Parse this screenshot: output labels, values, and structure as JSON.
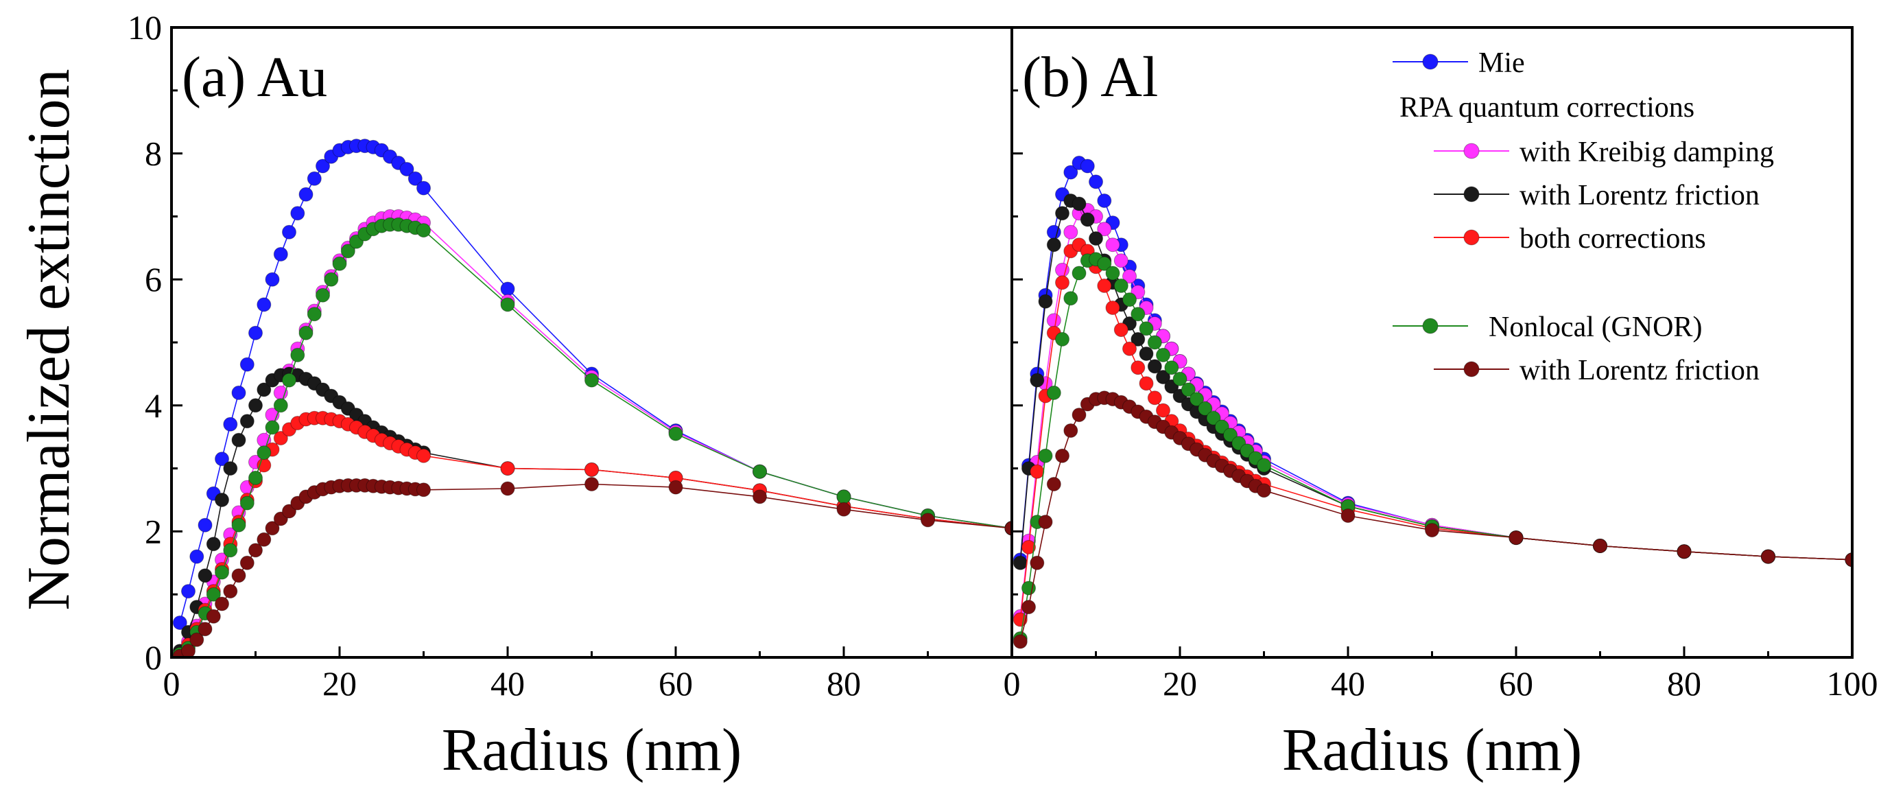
{
  "figure": {
    "ylabel": "Normalized extinction",
    "y_ticks": [
      "0",
      "2",
      "4",
      "6",
      "8",
      "10"
    ],
    "ylim": [
      0,
      10
    ]
  },
  "legend": {
    "items": [
      {
        "key": "mie",
        "label": "Mie",
        "color": "#1a1aff"
      },
      {
        "key": "rpa_header",
        "label": "RPA quantum corrections",
        "header": true
      },
      {
        "key": "kreibig",
        "label": "with Kreibig damping",
        "color": "#ff33ff"
      },
      {
        "key": "lorentz",
        "label": "with Lorentz friction",
        "color": "#1a1a1a"
      },
      {
        "key": "both",
        "label": "both corrections",
        "color": "#ff1a1a"
      },
      {
        "key": "gnor",
        "label": "Nonlocal (GNOR)",
        "color": "#1f8a1f"
      },
      {
        "key": "gnor_lorentz",
        "label": "with Lorentz friction",
        "color": "#7a0f0f"
      }
    ]
  },
  "chart_data": [
    {
      "type": "line",
      "title": "(a) Au",
      "xlabel": "Radius (nm)",
      "ylabel": "Normalized extinction",
      "xlim": [
        0,
        100
      ],
      "ylim": [
        0,
        10
      ],
      "x_ticks": [
        "0",
        "20",
        "40",
        "60",
        "80"
      ],
      "series": [
        {
          "name": "Mie",
          "color": "#1a1aff",
          "x": [
            1,
            2,
            3,
            4,
            5,
            6,
            7,
            8,
            9,
            10,
            11,
            12,
            13,
            14,
            15,
            16,
            17,
            18,
            19,
            20,
            21,
            22,
            23,
            24,
            25,
            26,
            27,
            28,
            29,
            30,
            40,
            50,
            60,
            70,
            80,
            90,
            100
          ],
          "values": [
            0.55,
            1.05,
            1.6,
            2.1,
            2.6,
            3.15,
            3.7,
            4.2,
            4.65,
            5.15,
            5.6,
            6.0,
            6.4,
            6.75,
            7.05,
            7.35,
            7.6,
            7.8,
            7.95,
            8.05,
            8.1,
            8.12,
            8.12,
            8.1,
            8.05,
            7.95,
            7.85,
            7.75,
            7.6,
            7.45,
            5.85,
            4.5,
            3.6,
            2.95,
            2.55,
            2.25,
            2.05
          ]
        },
        {
          "name": "with Kreibig damping",
          "color": "#ff33ff",
          "x": [
            1,
            2,
            3,
            4,
            5,
            6,
            7,
            8,
            9,
            10,
            11,
            12,
            13,
            14,
            15,
            16,
            17,
            18,
            19,
            20,
            21,
            22,
            23,
            24,
            25,
            26,
            27,
            28,
            29,
            30,
            40,
            50,
            60,
            70,
            80,
            90,
            100
          ],
          "values": [
            0.05,
            0.25,
            0.5,
            0.85,
            1.2,
            1.55,
            1.95,
            2.3,
            2.7,
            3.1,
            3.45,
            3.85,
            4.2,
            4.55,
            4.9,
            5.2,
            5.5,
            5.8,
            6.05,
            6.3,
            6.5,
            6.65,
            6.8,
            6.9,
            6.97,
            7.0,
            7.0,
            6.98,
            6.95,
            6.9,
            5.65,
            4.45,
            3.58,
            2.95,
            2.55,
            2.25,
            2.05
          ]
        },
        {
          "name": "with Lorentz friction",
          "color": "#1a1a1a",
          "x": [
            1,
            2,
            3,
            4,
            5,
            6,
            7,
            8,
            9,
            10,
            11,
            12,
            13,
            14,
            15,
            16,
            17,
            18,
            19,
            20,
            21,
            22,
            23,
            24,
            25,
            26,
            27,
            28,
            29,
            30,
            40,
            50,
            60,
            70,
            80,
            90,
            100
          ],
          "values": [
            0.1,
            0.4,
            0.8,
            1.3,
            1.8,
            2.5,
            3.0,
            3.45,
            3.75,
            4.0,
            4.25,
            4.4,
            4.48,
            4.5,
            4.48,
            4.42,
            4.35,
            4.25,
            4.15,
            4.05,
            3.95,
            3.85,
            3.75,
            3.65,
            3.57,
            3.5,
            3.43,
            3.36,
            3.3,
            3.25,
            3.0,
            2.98,
            2.85,
            2.65,
            2.4,
            2.2,
            2.05
          ]
        },
        {
          "name": "both corrections",
          "color": "#ff1a1a",
          "x": [
            1,
            2,
            3,
            4,
            5,
            6,
            7,
            8,
            9,
            10,
            11,
            12,
            13,
            14,
            15,
            16,
            17,
            18,
            19,
            20,
            21,
            22,
            23,
            24,
            25,
            26,
            27,
            28,
            29,
            30,
            40,
            50,
            60,
            70,
            80,
            90,
            100
          ],
          "values": [
            0.05,
            0.2,
            0.45,
            0.75,
            1.05,
            1.4,
            1.8,
            2.15,
            2.5,
            2.8,
            3.05,
            3.3,
            3.48,
            3.62,
            3.72,
            3.78,
            3.8,
            3.8,
            3.78,
            3.75,
            3.7,
            3.65,
            3.58,
            3.52,
            3.45,
            3.4,
            3.35,
            3.3,
            3.25,
            3.2,
            3.0,
            2.98,
            2.85,
            2.65,
            2.4,
            2.2,
            2.05
          ]
        },
        {
          "name": "Nonlocal (GNOR)",
          "color": "#1f8a1f",
          "x": [
            1,
            2,
            3,
            4,
            5,
            6,
            7,
            8,
            9,
            10,
            11,
            12,
            13,
            14,
            15,
            16,
            17,
            18,
            19,
            20,
            21,
            22,
            23,
            24,
            25,
            26,
            27,
            28,
            29,
            30,
            40,
            50,
            60,
            70,
            80,
            90,
            100
          ],
          "values": [
            0.05,
            0.15,
            0.4,
            0.7,
            1.0,
            1.35,
            1.7,
            2.1,
            2.45,
            2.85,
            3.25,
            3.65,
            4.0,
            4.4,
            4.8,
            5.15,
            5.45,
            5.75,
            6.0,
            6.25,
            6.45,
            6.6,
            6.72,
            6.8,
            6.85,
            6.87,
            6.87,
            6.85,
            6.82,
            6.78,
            5.6,
            4.4,
            3.55,
            2.95,
            2.55,
            2.25,
            2.05
          ]
        },
        {
          "name": "with Lorentz friction",
          "color": "#7a0f0f",
          "x": [
            1,
            2,
            3,
            4,
            5,
            6,
            7,
            8,
            9,
            10,
            11,
            12,
            13,
            14,
            15,
            16,
            17,
            18,
            19,
            20,
            21,
            22,
            23,
            24,
            25,
            26,
            27,
            28,
            29,
            30,
            40,
            50,
            60,
            70,
            80,
            90,
            100
          ],
          "values": [
            0.02,
            0.1,
            0.28,
            0.45,
            0.65,
            0.85,
            1.05,
            1.3,
            1.5,
            1.7,
            1.87,
            2.05,
            2.2,
            2.32,
            2.45,
            2.55,
            2.62,
            2.67,
            2.7,
            2.72,
            2.73,
            2.73,
            2.73,
            2.72,
            2.71,
            2.7,
            2.69,
            2.68,
            2.67,
            2.66,
            2.68,
            2.75,
            2.7,
            2.55,
            2.35,
            2.18,
            2.05
          ]
        }
      ]
    },
    {
      "type": "line",
      "title": "(b) Al",
      "xlabel": "Radius (nm)",
      "ylabel": "Normalized extinction",
      "xlim": [
        0,
        100
      ],
      "ylim": [
        0,
        10
      ],
      "x_ticks": [
        "0",
        "20",
        "40",
        "60",
        "80",
        "100"
      ],
      "series": [
        {
          "name": "Mie",
          "color": "#1a1aff",
          "x": [
            1,
            2,
            3,
            4,
            5,
            6,
            7,
            8,
            9,
            10,
            11,
            12,
            13,
            14,
            15,
            16,
            17,
            18,
            19,
            20,
            21,
            22,
            23,
            24,
            25,
            26,
            27,
            28,
            29,
            30,
            40,
            50,
            60,
            70,
            80,
            90,
            100
          ],
          "values": [
            1.55,
            3.05,
            4.5,
            5.75,
            6.75,
            7.35,
            7.7,
            7.85,
            7.8,
            7.55,
            7.25,
            6.9,
            6.55,
            6.2,
            5.9,
            5.6,
            5.35,
            5.1,
            4.9,
            4.7,
            4.5,
            4.35,
            4.2,
            4.05,
            3.9,
            3.75,
            3.6,
            3.45,
            3.3,
            3.15,
            2.45,
            2.1,
            1.9,
            1.77,
            1.68,
            1.6,
            1.55
          ]
        },
        {
          "name": "with Kreibig damping",
          "color": "#ff33ff",
          "x": [
            1,
            2,
            3,
            4,
            5,
            6,
            7,
            8,
            9,
            10,
            11,
            12,
            13,
            14,
            15,
            16,
            17,
            18,
            19,
            20,
            21,
            22,
            23,
            24,
            25,
            26,
            27,
            28,
            29,
            30,
            40,
            50,
            60,
            70,
            80,
            90,
            100
          ],
          "values": [
            0.65,
            1.85,
            3.1,
            4.35,
            5.35,
            6.15,
            6.75,
            7.05,
            7.1,
            7.0,
            6.8,
            6.55,
            6.3,
            6.05,
            5.8,
            5.55,
            5.3,
            5.1,
            4.9,
            4.7,
            4.5,
            4.33,
            4.17,
            4.02,
            3.87,
            3.72,
            3.57,
            3.42,
            3.27,
            3.1,
            2.43,
            2.1,
            1.9,
            1.77,
            1.68,
            1.6,
            1.55
          ]
        },
        {
          "name": "with Lorentz friction",
          "color": "#1a1a1a",
          "x": [
            1,
            2,
            3,
            4,
            5,
            6,
            7,
            8,
            9,
            10,
            11,
            12,
            13,
            14,
            15,
            16,
            17,
            18,
            19,
            20,
            21,
            22,
            23,
            24,
            25,
            26,
            27,
            28,
            29,
            30,
            40,
            50,
            60,
            70,
            80,
            90,
            100
          ],
          "values": [
            1.5,
            3.0,
            4.4,
            5.65,
            6.55,
            7.05,
            7.25,
            7.2,
            6.95,
            6.65,
            6.3,
            5.95,
            5.6,
            5.3,
            5.05,
            4.82,
            4.62,
            4.45,
            4.3,
            4.15,
            4.02,
            3.9,
            3.78,
            3.66,
            3.55,
            3.44,
            3.33,
            3.22,
            3.11,
            3.0,
            2.4,
            2.08,
            1.9,
            1.77,
            1.68,
            1.6,
            1.55
          ]
        },
        {
          "name": "both corrections",
          "color": "#ff1a1a",
          "x": [
            1,
            2,
            3,
            4,
            5,
            6,
            7,
            8,
            9,
            10,
            11,
            12,
            13,
            14,
            15,
            16,
            17,
            18,
            19,
            20,
            21,
            22,
            23,
            24,
            25,
            26,
            27,
            28,
            29,
            30,
            40,
            50,
            60,
            70,
            80,
            90,
            100
          ],
          "values": [
            0.6,
            1.75,
            2.95,
            4.15,
            5.15,
            5.95,
            6.45,
            6.55,
            6.45,
            6.2,
            5.9,
            5.55,
            5.2,
            4.9,
            4.6,
            4.35,
            4.12,
            3.92,
            3.75,
            3.6,
            3.47,
            3.36,
            3.26,
            3.17,
            3.09,
            3.01,
            2.94,
            2.87,
            2.8,
            2.75,
            2.35,
            2.05,
            1.9,
            1.77,
            1.68,
            1.6,
            1.55
          ]
        },
        {
          "name": "Nonlocal (GNOR)",
          "color": "#1f8a1f",
          "x": [
            1,
            2,
            3,
            4,
            5,
            6,
            7,
            8,
            9,
            10,
            11,
            12,
            13,
            14,
            15,
            16,
            17,
            18,
            19,
            20,
            21,
            22,
            23,
            24,
            25,
            26,
            27,
            28,
            29,
            30,
            40,
            50,
            60,
            70,
            80,
            90,
            100
          ],
          "values": [
            0.3,
            1.1,
            2.15,
            3.2,
            4.2,
            5.05,
            5.7,
            6.1,
            6.3,
            6.32,
            6.25,
            6.1,
            5.9,
            5.68,
            5.45,
            5.22,
            5.0,
            4.8,
            4.6,
            4.42,
            4.25,
            4.1,
            3.95,
            3.8,
            3.66,
            3.53,
            3.4,
            3.28,
            3.16,
            3.05,
            2.4,
            2.08,
            1.9,
            1.77,
            1.68,
            1.6,
            1.55
          ]
        },
        {
          "name": "with Lorentz friction",
          "color": "#7a0f0f",
          "x": [
            1,
            2,
            3,
            4,
            5,
            6,
            7,
            8,
            9,
            10,
            11,
            12,
            13,
            14,
            15,
            16,
            17,
            18,
            19,
            20,
            21,
            22,
            23,
            24,
            25,
            26,
            27,
            28,
            29,
            30,
            40,
            50,
            60,
            70,
            80,
            90,
            100
          ],
          "values": [
            0.25,
            0.8,
            1.5,
            2.15,
            2.75,
            3.2,
            3.6,
            3.85,
            4.02,
            4.1,
            4.12,
            4.1,
            4.05,
            3.98,
            3.9,
            3.82,
            3.74,
            3.66,
            3.57,
            3.48,
            3.39,
            3.3,
            3.21,
            3.12,
            3.04,
            2.96,
            2.88,
            2.8,
            2.72,
            2.65,
            2.25,
            2.02,
            1.9,
            1.77,
            1.68,
            1.6,
            1.55
          ]
        }
      ]
    }
  ]
}
